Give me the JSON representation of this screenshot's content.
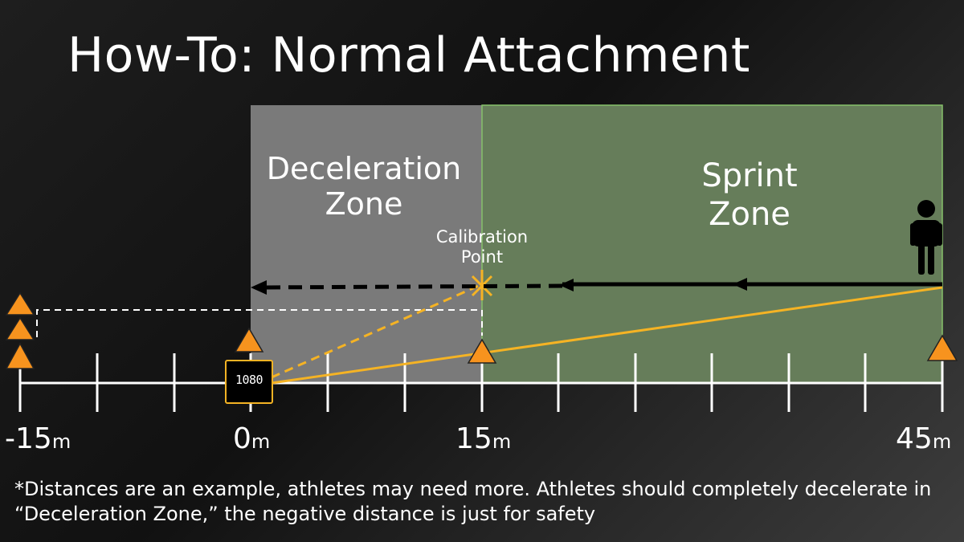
{
  "title": "How-To: Normal Attachment",
  "zones": {
    "deceleration": "Deceleration\nZone",
    "sprint": "Sprint\nZone"
  },
  "calibration_point": "Calibration\nPoint",
  "device_label": "1080",
  "axis": {
    "ticks": [
      {
        "value": "-15",
        "unit": "m"
      },
      {
        "value": "0",
        "unit": "m"
      },
      {
        "value": "15",
        "unit": "m"
      },
      {
        "value": "45",
        "unit": "m"
      }
    ]
  },
  "footnote": "*Distances are an example, athletes may need more. Athletes should completely decelerate in “Deceleration Zone,” the negative distance is just for safety",
  "colors": {
    "sprint_zone": "#667d5a",
    "decel_zone": "#7a7a7a",
    "cone": "#f7931e",
    "yellow_line": "#f5b324",
    "arrow": "#000000"
  },
  "icons": {
    "athlete": "person-icon",
    "cone": "traffic-cone-icon"
  }
}
